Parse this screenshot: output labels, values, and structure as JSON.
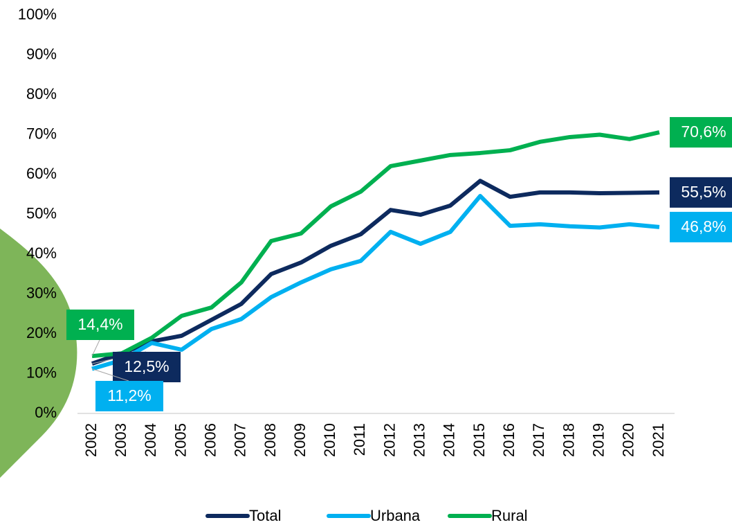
{
  "chart_data": {
    "type": "line",
    "categories": [
      "2002",
      "2003",
      "2004",
      "2005",
      "2006",
      "2007",
      "2008",
      "2009",
      "2010",
      "2011",
      "2012",
      "2013",
      "2014",
      "2015",
      "2016",
      "2017",
      "2018",
      "2019",
      "2020",
      "2021"
    ],
    "series": [
      {
        "name": "Total",
        "color": "#0d2a5e",
        "values": [
          12.5,
          15.1,
          18.1,
          19.5,
          23.5,
          27.5,
          35,
          37.9,
          42.1,
          45,
          51.1,
          49.9,
          52.2,
          58.4,
          54.4,
          55.5,
          55.5,
          55.3,
          55.4,
          55.5
        ],
        "value_labels": [
          "12,5%",
          null,
          null,
          null,
          null,
          null,
          null,
          null,
          null,
          null,
          null,
          null,
          null,
          null,
          null,
          null,
          null,
          null,
          null,
          "55,5%"
        ]
      },
      {
        "name": "Urbana",
        "color": "#00b0f0",
        "values": [
          11.2,
          13.4,
          17.7,
          16,
          21.2,
          23.7,
          29.2,
          32.9,
          36.2,
          38.3,
          45.6,
          42.6,
          45.6,
          54.6,
          47.1,
          47.5,
          47,
          46.7,
          47.5,
          46.8
        ],
        "value_labels": [
          "11,2%",
          null,
          null,
          null,
          null,
          null,
          null,
          null,
          null,
          null,
          null,
          null,
          null,
          null,
          null,
          null,
          null,
          null,
          null,
          "46,8%"
        ]
      },
      {
        "name": "Rural",
        "color": "#00b050",
        "values": [
          14.4,
          15.1,
          19,
          24.5,
          26.6,
          32.9,
          43.3,
          45.2,
          52,
          55.7,
          62.1,
          63.5,
          64.9,
          65.4,
          66.1,
          68.2,
          69.4,
          70,
          68.9,
          70.6
        ],
        "value_labels": [
          "14,4%",
          null,
          null,
          null,
          null,
          null,
          null,
          null,
          null,
          null,
          null,
          null,
          null,
          null,
          null,
          null,
          null,
          null,
          null,
          "70,6%"
        ]
      }
    ],
    "ylim": [
      0,
      100
    ],
    "yticks": [
      {
        "value": 0,
        "label": "0%"
      },
      {
        "value": 10,
        "label": "10%"
      },
      {
        "value": 20,
        "label": "20%"
      },
      {
        "value": 30,
        "label": "30%"
      },
      {
        "value": 40,
        "label": "40%"
      },
      {
        "value": 50,
        "label": "50%"
      },
      {
        "value": 60,
        "label": "60%"
      },
      {
        "value": 70,
        "label": "70%"
      },
      {
        "value": 80,
        "label": "80%"
      },
      {
        "value": 90,
        "label": "90%"
      },
      {
        "value": 100,
        "label": "100%"
      }
    ],
    "grid": false,
    "legend": "bottom"
  }
}
